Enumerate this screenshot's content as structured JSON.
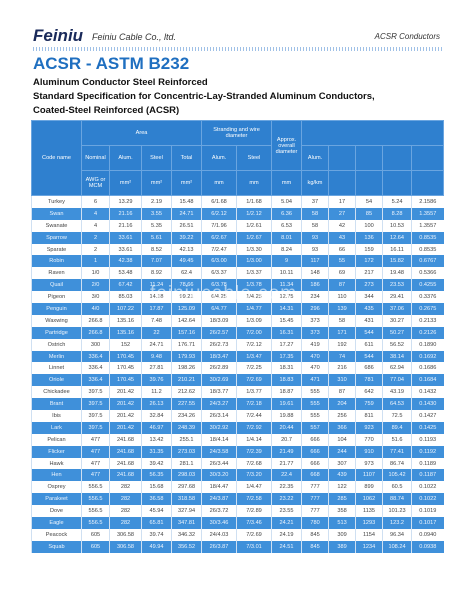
{
  "header": {
    "logo": "Feiniu",
    "company": "Feiniu Cable Co., ltd.",
    "product": "ACSR Conductors"
  },
  "title": "ACSR - ASTM B232",
  "subtitle": [
    "Aluminum Conductor Steel Reinforced",
    "Standard Specification for Concentric-Lay-Stranded Aluminum Conductors,",
    "Coated-Steel Reinforced (ACSR)"
  ],
  "watermark": "feiniucable.com",
  "table": {
    "head": {
      "code_name": "Code name",
      "area": "Area",
      "stranding": "Stranding and wire diameter",
      "overall_diameter": "Approx. overall diameter",
      "row2": [
        "Nominal",
        "Alum.",
        "Steel",
        "Total",
        "Alum.",
        "Steel",
        "Alum."
      ],
      "units": [
        "AWG or MCM",
        "mm²",
        "mm²",
        "mm²",
        "mm",
        "mm",
        "mm",
        "kg/km"
      ]
    },
    "rows": [
      [
        "Turkey",
        "6",
        "13.29",
        "2.19",
        "15.48",
        "6/1.68",
        "1/1.68",
        "5.04",
        "37",
        "17",
        "54",
        "5.24",
        "2.1586"
      ],
      [
        "Swan",
        "4",
        "21.16",
        "3.55",
        "24.71",
        "6/2.12",
        "1/2.12",
        "6.36",
        "58",
        "27",
        "85",
        "8.28",
        "1.3557"
      ],
      [
        "Swanate",
        "4",
        "21.16",
        "5.35",
        "26.51",
        "7/1.96",
        "1/2.61",
        "6.53",
        "58",
        "42",
        "100",
        "10.53",
        "1.3557"
      ],
      [
        "Sparrow",
        "2",
        "33.61",
        "5.61",
        "39.22",
        "6/2.67",
        "1/2.67",
        "8.01",
        "93",
        "43",
        "136",
        "12.64",
        "0.8535"
      ],
      [
        "Sparate",
        "2",
        "33.61",
        "8.52",
        "42.13",
        "7/2.47",
        "1/3.30",
        "8.24",
        "93",
        "66",
        "159",
        "16.11",
        "0.8535"
      ],
      [
        "Robin",
        "1",
        "42.38",
        "7.07",
        "49.45",
        "6/3.00",
        "1/3.00",
        "9",
        "117",
        "55",
        "172",
        "15.82",
        "0.6767"
      ],
      [
        "Raven",
        "1/0",
        "53.48",
        "8.92",
        "62.4",
        "6/3.37",
        "1/3.37",
        "10.11",
        "148",
        "69",
        "217",
        "19.48",
        "0.5366"
      ],
      [
        "Quail",
        "2/0",
        "67.42",
        "11.24",
        "78.66",
        "6/3.78",
        "1/3.78",
        "11.34",
        "186",
        "87",
        "273",
        "23.53",
        "0.4255"
      ],
      [
        "Pigeon",
        "3/0",
        "85.03",
        "14.18",
        "99.21",
        "6/4.25",
        "1/4.25",
        "12.75",
        "234",
        "110",
        "344",
        "29.41",
        "0.3376"
      ],
      [
        "Penguin",
        "4/0",
        "107.22",
        "17.87",
        "125.09",
        "6/4.77",
        "1/4.77",
        "14.31",
        "296",
        "139",
        "435",
        "37.06",
        "0.2675"
      ],
      [
        "Waxwing",
        "266.8",
        "135.16",
        "7.48",
        "142.64",
        "18/3.09",
        "1/3.09",
        "15.45",
        "373",
        "58",
        "431",
        "30.27",
        "0.2133"
      ],
      [
        "Partridge",
        "266.8",
        "135.16",
        "22",
        "157.16",
        "26/2.57",
        "7/2.00",
        "16.31",
        "373",
        "171",
        "544",
        "50.27",
        "0.2126"
      ],
      [
        "Ostrich",
        "300",
        "152",
        "24.71",
        "176.71",
        "26/2.73",
        "7/2.12",
        "17.27",
        "419",
        "192",
        "611",
        "56.52",
        "0.1890"
      ],
      [
        "Merlin",
        "336.4",
        "170.45",
        "9.48",
        "179.93",
        "18/3.47",
        "1/3.47",
        "17.35",
        "470",
        "74",
        "544",
        "38.14",
        "0.1692"
      ],
      [
        "Linnet",
        "336.4",
        "170.45",
        "27.81",
        "198.26",
        "26/2.89",
        "7/2.25",
        "18.31",
        "470",
        "216",
        "686",
        "62.94",
        "0.1686"
      ],
      [
        "Oriole",
        "336.4",
        "170.45",
        "39.76",
        "210.21",
        "30/2.69",
        "7/2.69",
        "18.83",
        "471",
        "310",
        "781",
        "77.04",
        "0.1684"
      ],
      [
        "Chickadee",
        "397.5",
        "201.42",
        "11.2",
        "212.62",
        "18/3.77",
        "1/3.77",
        "18.87",
        "555",
        "87",
        "642",
        "43.19",
        "0.1432"
      ],
      [
        "Brant",
        "397.5",
        "201.42",
        "26.13",
        "227.55",
        "24/3.27",
        "7/2.18",
        "19.61",
        "555",
        "204",
        "759",
        "64.53",
        "0.1430"
      ],
      [
        "Ibis",
        "397.5",
        "201.42",
        "32.84",
        "234.26",
        "26/3.14",
        "7/2.44",
        "19.88",
        "555",
        "256",
        "811",
        "72.5",
        "0.1427"
      ],
      [
        "Lark",
        "397.5",
        "201.42",
        "46.97",
        "248.39",
        "30/2.92",
        "7/2.92",
        "20.44",
        "557",
        "366",
        "923",
        "89.4",
        "0.1425"
      ],
      [
        "Pelican",
        "477",
        "241.68",
        "13.42",
        "255.1",
        "18/4.14",
        "1/4.14",
        "20.7",
        "666",
        "104",
        "770",
        "51.6",
        "0.1193"
      ],
      [
        "Flicker",
        "477",
        "241.68",
        "31.35",
        "273.03",
        "24/3.58",
        "7/2.39",
        "21.49",
        "666",
        "244",
        "910",
        "77.41",
        "0.1192"
      ],
      [
        "Hawk",
        "477",
        "241.68",
        "39.42",
        "281.1",
        "26/3.44",
        "7/2.68",
        "21.77",
        "666",
        "307",
        "973",
        "86.74",
        "0.1189"
      ],
      [
        "Hen",
        "477",
        "241.68",
        "56.35",
        "298.03",
        "30/3.20",
        "7/3.20",
        "22.4",
        "668",
        "439",
        "1107",
        "105.42",
        "0.1187"
      ],
      [
        "Osprey",
        "556.5",
        "282",
        "15.68",
        "297.68",
        "18/4.47",
        "1/4.47",
        "22.35",
        "777",
        "122",
        "899",
        "60.5",
        "0.1022"
      ],
      [
        "Parakeet",
        "556.5",
        "282",
        "36.58",
        "318.58",
        "24/3.87",
        "7/2.58",
        "23.22",
        "777",
        "285",
        "1062",
        "88.74",
        "0.1022"
      ],
      [
        "Dove",
        "556.5",
        "282",
        "45.94",
        "327.94",
        "26/3.72",
        "7/2.89",
        "23.55",
        "777",
        "358",
        "1135",
        "101.23",
        "0.1019"
      ],
      [
        "Eagle",
        "556.5",
        "282",
        "65.81",
        "347.81",
        "30/3.46",
        "7/3.46",
        "24.21",
        "780",
        "513",
        "1293",
        "123.2",
        "0.1017"
      ],
      [
        "Peacock",
        "605",
        "306.58",
        "39.74",
        "346.32",
        "24/4.03",
        "7/2.69",
        "24.19",
        "845",
        "309",
        "1154",
        "96.34",
        "0.0940"
      ],
      [
        "Squab",
        "605",
        "306.58",
        "49.94",
        "356.52",
        "26/3.87",
        "7/3.01",
        "24.51",
        "845",
        "389",
        "1234",
        "108.24",
        "0.0938"
      ]
    ]
  }
}
